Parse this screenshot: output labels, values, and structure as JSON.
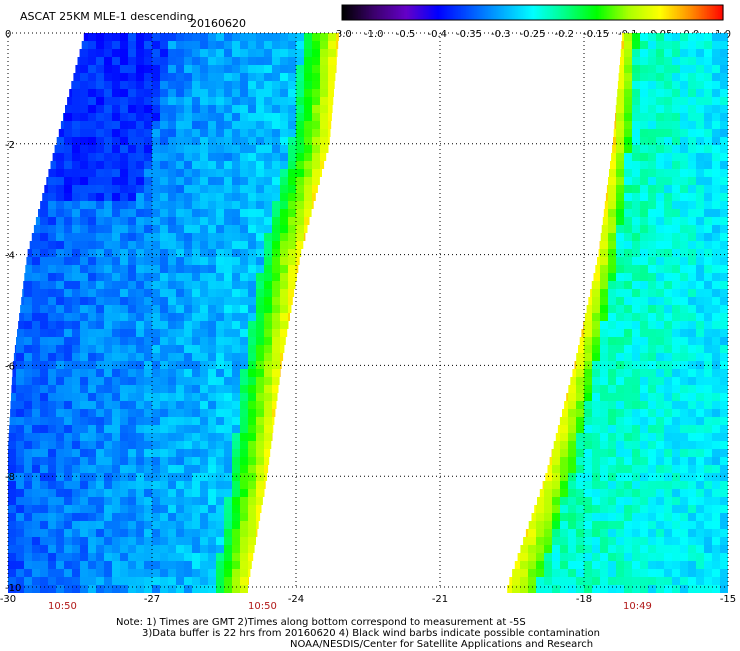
{
  "header": {
    "title": "ASCAT 25KM MLE-1 descending",
    "date": "20160620"
  },
  "colorbar": {
    "labels": [
      "-3.0",
      "-1.0",
      "-0.5",
      "-0.4",
      "-0.35",
      "-0.3",
      "-0.25",
      "-0.2",
      "-0.15",
      "-0.1",
      "-0.05",
      "0.0",
      "1.0"
    ],
    "colors": [
      "#000000",
      "#3c006e",
      "#6400c8",
      "#0000ff",
      "#0055ff",
      "#00aaff",
      "#00ffff",
      "#00ff88",
      "#00ff00",
      "#aaff00",
      "#ffff00",
      "#ff8800",
      "#ff0000"
    ]
  },
  "time_labels": {
    "left": "10:50",
    "middle": "10:50",
    "right": "10:49"
  },
  "notes": {
    "line1": "Note: 1) Times are GMT 2)Times along bottom correspond to measurement at -5S",
    "line2": "3)Data buffer is 22 hrs from 20160620 4) Black wind barbs indicate possible contamination",
    "line3": "NOAA/NESDIS/Center for Satellite Applications and Research"
  },
  "chart_data": {
    "type": "heatmap",
    "title": "ASCAT 25KM MLE-1 descending",
    "xlabel": "",
    "ylabel": "",
    "xlim": [
      -30,
      -15
    ],
    "ylim": [
      -10,
      0
    ],
    "x_ticks": [
      -30,
      -27,
      -24,
      -21,
      -18,
      -15
    ],
    "x_tick_labels": [
      "-30",
      "-27",
      "-24",
      "-21",
      "-18",
      "-15"
    ],
    "y_ticks": [
      0,
      -2,
      -4,
      -6,
      -8,
      -10
    ],
    "y_tick_labels": [
      "0",
      "-2",
      "-4",
      "-6",
      "-8",
      "-10"
    ],
    "grid": true,
    "color_scale_breaks": [
      -3.0,
      -1.0,
      -0.5,
      -0.4,
      -0.35,
      -0.3,
      -0.25,
      -0.2,
      -0.15,
      -0.1,
      -0.05,
      0.0,
      1.0
    ],
    "swaths": [
      {
        "name": "",
        "time": "10:50",
        "x_range": [
          -30,
          -23.1
        ],
        "west_edge": [
          [
            0,
            -28.4
          ],
          [
            -2,
            -29.0
          ],
          [
            -4,
            -29.6
          ],
          [
            -6,
            -29.9
          ],
          [
            -7.5,
            -30.0
          ],
          [
            -10,
            -30.0
          ]
        ],
        "east_edge": [
          [
            0,
            -23.1
          ],
          [
            -2,
            -23.3
          ],
          [
            -4,
            -23.9
          ],
          [
            -6,
            -24.3
          ],
          [
            -8,
            -24.6
          ],
          [
            -10,
            -25.0
          ]
        ],
        "dominant_value_range": [
          -0.4,
          -0.25
        ],
        "east_edge_value_range": [
          -0.2,
          -0.05
        ],
        "min_value_region": "north-west, about -0.4"
      },
      {
        "name": "",
        "time": "10:49",
        "x_range": [
          -19.6,
          -15
        ],
        "west_edge": [
          [
            0,
            -17.2
          ],
          [
            -2,
            -17.4
          ],
          [
            -4,
            -17.7
          ],
          [
            -6,
            -18.2
          ],
          [
            -8,
            -18.8
          ],
          [
            -10,
            -19.6
          ]
        ],
        "east_edge": [
          [
            0,
            -15.0
          ],
          [
            -10,
            -15.0
          ]
        ],
        "dominant_value_range": [
          -0.3,
          -0.2
        ],
        "west_edge_value_range": [
          -0.15,
          -0.05
        ]
      }
    ]
  }
}
